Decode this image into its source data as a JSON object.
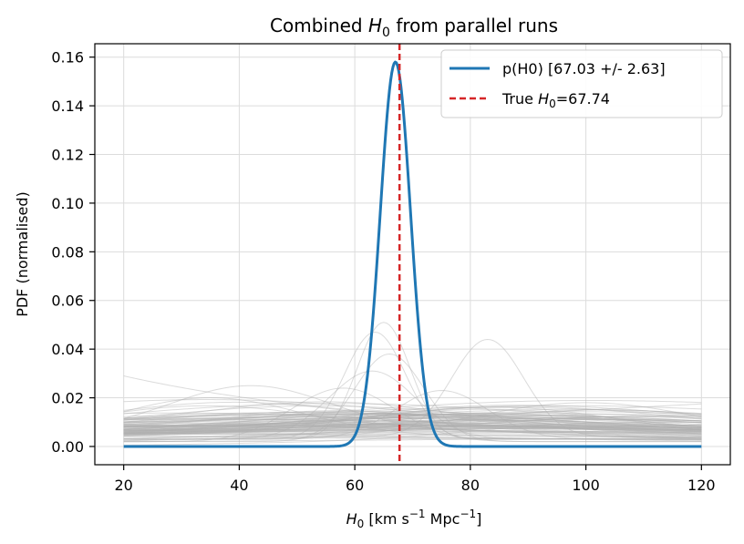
{
  "chart_data": {
    "type": "line",
    "title_prefix": "Combined",
    "title_symbol": "H",
    "title_sub": "0",
    "title_suffix": "from parallel runs",
    "xlabel": {
      "symbol": "H",
      "sub": "0",
      "unit_open": "[km s",
      "unit_sup1": "−1",
      "unit_mid": "Mpc",
      "unit_sup2": "−1",
      "unit_close": "]"
    },
    "ylabel": "PDF (normalised)",
    "xlim": [
      15,
      125
    ],
    "ylim": [
      -0.0075,
      0.1655
    ],
    "x_ticks": [
      20,
      40,
      60,
      80,
      100,
      120
    ],
    "x_tick_labels": [
      "20",
      "40",
      "60",
      "80",
      "100",
      "120"
    ],
    "y_ticks": [
      0.0,
      0.02,
      0.04,
      0.06,
      0.08,
      0.1,
      0.12,
      0.14,
      0.16
    ],
    "y_tick_labels": [
      "0.00",
      "0.02",
      "0.04",
      "0.06",
      "0.08",
      "0.10",
      "0.12",
      "0.14",
      "0.16"
    ],
    "grid": true,
    "legend_position": "top-right",
    "combined": {
      "label": "p(H0) [67.03 +/- 2.63]",
      "mean": 67.03,
      "sigma": 2.63,
      "peak": 0.158,
      "x_range": [
        20,
        120
      ],
      "color": "#1f77b4"
    },
    "truth": {
      "label_prefix": "True",
      "label_symbol": "H",
      "label_sub": "0",
      "label_value": "=67.74",
      "value": 67.74,
      "color": "#d62728"
    },
    "individual_runs": {
      "description": "~100 faint grey posterior curves from individual runs",
      "color": "#b0b0b0",
      "x_range": [
        20,
        120
      ],
      "examples": [
        {
          "x": [
            20,
            40,
            60,
            80,
            100,
            120
          ],
          "y": [
            0.028,
            0.022,
            0.015,
            0.011,
            0.008,
            0.005
          ]
        },
        {
          "x": [
            20,
            42,
            60,
            80,
            100,
            120
          ],
          "y": [
            0.017,
            0.025,
            0.018,
            0.012,
            0.009,
            0.007
          ]
        },
        {
          "x": [
            20,
            50,
            65,
            70,
            90,
            120
          ],
          "y": [
            0.004,
            0.008,
            0.053,
            0.02,
            0.005,
            0.002
          ]
        },
        {
          "x": [
            20,
            50,
            64,
            75,
            90,
            120
          ],
          "y": [
            0.003,
            0.01,
            0.048,
            0.022,
            0.006,
            0.002
          ]
        },
        {
          "x": [
            20,
            60,
            70,
            83,
            95,
            120
          ],
          "y": [
            0.002,
            0.005,
            0.012,
            0.043,
            0.015,
            0.004
          ]
        },
        {
          "x": [
            20,
            40,
            60,
            80,
            100,
            120
          ],
          "y": [
            0.002,
            0.006,
            0.01,
            0.011,
            0.012,
            0.013
          ]
        }
      ]
    }
  }
}
